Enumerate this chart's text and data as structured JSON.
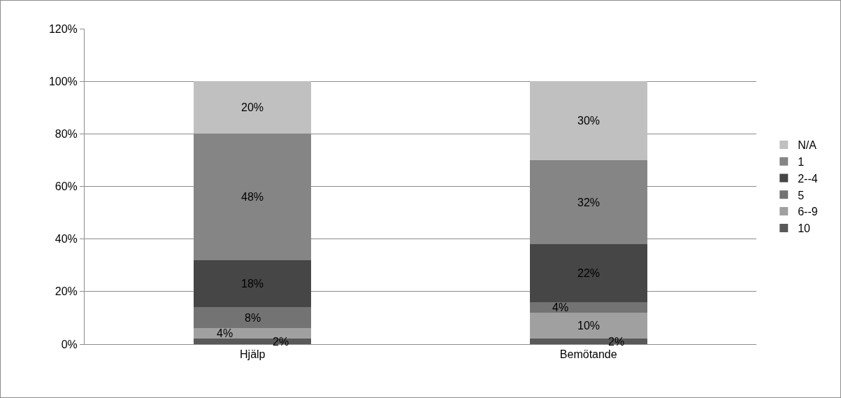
{
  "chart_data": {
    "type": "bar",
    "stacked": true,
    "categories": [
      "Hjälp",
      "Bemötande"
    ],
    "series": [
      {
        "name": "10",
        "color": "#595959",
        "values": [
          2,
          2
        ],
        "value_labels": [
          "2%",
          "2%"
        ]
      },
      {
        "name": "6--9",
        "color": "#a0a0a0",
        "values": [
          4,
          10
        ],
        "value_labels": [
          "4%",
          "10%"
        ]
      },
      {
        "name": "5",
        "color": "#737373",
        "values": [
          8,
          4
        ],
        "value_labels": [
          "8%",
          "4%"
        ]
      },
      {
        "name": "2--4",
        "color": "#464646",
        "values": [
          18,
          22
        ],
        "value_labels": [
          "18%",
          "22%"
        ]
      },
      {
        "name": "1",
        "color": "#858585",
        "values": [
          48,
          32
        ],
        "value_labels": [
          "48%",
          "32%"
        ]
      },
      {
        "name": "N/A",
        "color": "#c0c0c0",
        "values": [
          20,
          30
        ],
        "value_labels": [
          "20%",
          "30%"
        ]
      }
    ],
    "ylim": [
      0,
      120
    ],
    "yticks": [
      {
        "value": 0,
        "label": "0%"
      },
      {
        "value": 20,
        "label": "20%"
      },
      {
        "value": 40,
        "label": "40%"
      },
      {
        "value": 60,
        "label": "60%"
      },
      {
        "value": 80,
        "label": "80%"
      },
      {
        "value": 100,
        "label": "100%"
      },
      {
        "value": 120,
        "label": "120%"
      }
    ],
    "grid": "y",
    "legend": "right"
  }
}
